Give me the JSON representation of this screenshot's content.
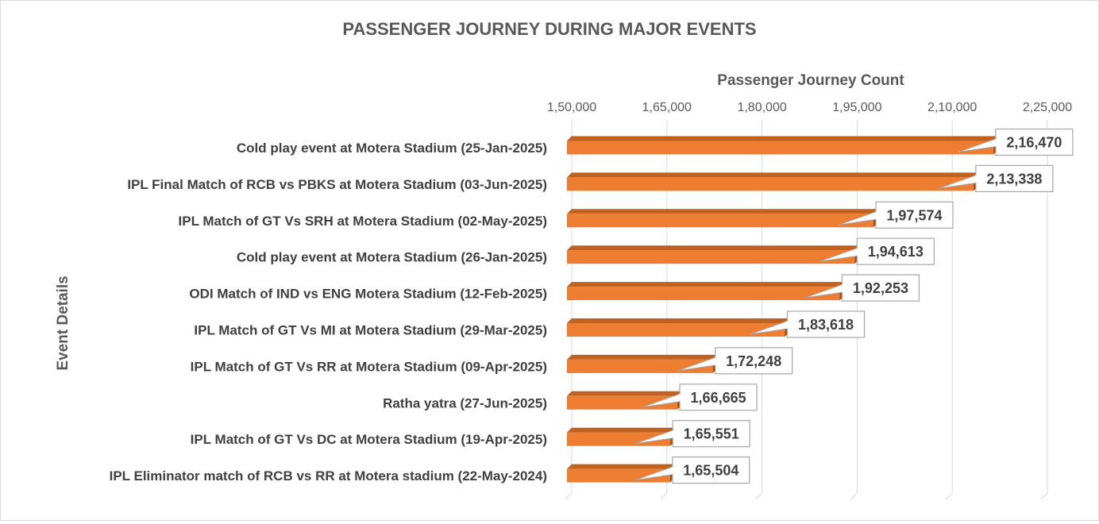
{
  "chart_data": {
    "type": "bar",
    "orientation": "horizontal",
    "title": "PASSENGER JOURNEY DURING MAJOR EVENTS",
    "xlabel": "Passenger Journey Count",
    "ylabel": "Event Details",
    "xlim": [
      150000,
      225000
    ],
    "xticks": [
      150000,
      165000,
      180000,
      195000,
      210000,
      225000
    ],
    "xtick_labels": [
      "1,50,000",
      "1,65,000",
      "1,80,000",
      "1,95,000",
      "2,10,000",
      "2,25,000"
    ],
    "x_axis_position": "top",
    "grid": true,
    "legend": "none",
    "bar_color": "#ED7D31",
    "categories": [
      "Cold play event at Motera Stadium (25-Jan-2025)",
      "IPL Final Match of RCB vs PBKS at Motera Stadium (03-Jun-2025)",
      "IPL Match of GT Vs SRH at Motera Stadium (02-May-2025)",
      "Cold play event at Motera Stadium (26-Jan-2025)",
      "ODI Match of IND vs ENG Motera Stadium (12-Feb-2025)",
      "IPL Match of GT Vs MI at Motera Stadium (29-Mar-2025)",
      "IPL Match of GT Vs RR at Motera Stadium (09-Apr-2025)",
      "Ratha yatra (27-Jun-2025)",
      "IPL Match of GT Vs DC at Motera Stadium (19-Apr-2025)",
      "IPL Eliminator match of RCB vs RR at Motera stadium (22-May-2024)"
    ],
    "values": [
      216470,
      213338,
      197574,
      194613,
      192253,
      183618,
      172248,
      166665,
      165551,
      165504
    ],
    "data_labels": [
      "2,16,470",
      "2,13,338",
      "1,97,574",
      "1,94,613",
      "1,92,253",
      "1,83,618",
      "1,72,248",
      "1,66,665",
      "1,65,551",
      "1,65,504"
    ]
  }
}
